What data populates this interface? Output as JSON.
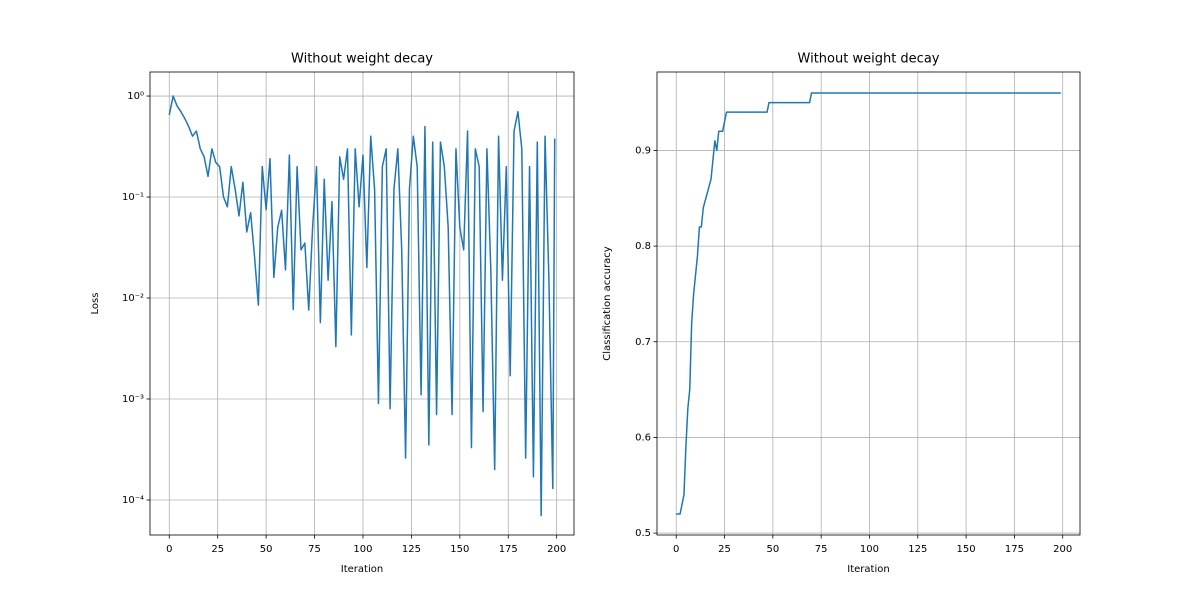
{
  "chart_data": [
    {
      "type": "line",
      "title": "Without weight decay",
      "x_label": "Iteration",
      "y_label": "Loss",
      "yscale": "log",
      "grid": true,
      "x": [
        0,
        2,
        4,
        6,
        8,
        10,
        12,
        14,
        16,
        18,
        20,
        22,
        24,
        26,
        28,
        30,
        32,
        34,
        36,
        38,
        40,
        42,
        44,
        46,
        48,
        50,
        52,
        54,
        56,
        58,
        60,
        62,
        64,
        66,
        68,
        70,
        72,
        74,
        76,
        78,
        80,
        82,
        84,
        86,
        88,
        90,
        92,
        94,
        96,
        98,
        100,
        102,
        104,
        106,
        108,
        110,
        112,
        114,
        116,
        118,
        120,
        122,
        124,
        126,
        128,
        130,
        132,
        134,
        136,
        138,
        140,
        142,
        144,
        146,
        148,
        150,
        152,
        154,
        156,
        158,
        160,
        162,
        164,
        166,
        168,
        170,
        172,
        174,
        176,
        178,
        180,
        182,
        184,
        186,
        188,
        190,
        192,
        194,
        196,
        198,
        199
      ],
      "series": [
        {
          "color": "#1f77b4",
          "values": [
            0.65,
            1.0,
            0.8,
            0.7,
            0.6,
            0.5,
            0.4,
            0.45,
            0.3,
            0.25,
            0.16,
            0.3,
            0.22,
            0.2,
            0.1,
            0.08,
            0.2,
            0.12,
            0.065,
            0.14,
            0.045,
            0.07,
            0.026,
            0.0085,
            0.2,
            0.075,
            0.24,
            0.016,
            0.05,
            0.074,
            0.019,
            0.26,
            0.0077,
            0.2,
            0.03,
            0.035,
            0.0076,
            0.05,
            0.2,
            0.0057,
            0.15,
            0.015,
            0.09,
            0.0033,
            0.25,
            0.15,
            0.3,
            0.0043,
            0.3,
            0.08,
            0.26,
            0.02,
            0.4,
            0.12,
            0.0009,
            0.2,
            0.3,
            0.0008,
            0.12,
            0.3,
            0.03,
            0.00026,
            0.12,
            0.4,
            0.2,
            0.0011,
            0.5,
            0.00035,
            0.35,
            0.0007,
            0.35,
            0.2,
            0.05,
            0.0007,
            0.3,
            0.05,
            0.03,
            0.45,
            0.00033,
            0.3,
            0.2,
            0.00075,
            0.3,
            0.019,
            0.0002,
            0.4,
            0.015,
            0.2,
            0.0017,
            0.45,
            0.7,
            0.3,
            0.00026,
            0.2,
            0.00017,
            0.35,
            7e-05,
            0.4,
            0.015,
            0.00013,
            0.38
          ]
        }
      ],
      "xlim": [
        -9.95,
        208.95
      ],
      "xticks": [
        0,
        25,
        50,
        75,
        100,
        125,
        150,
        175,
        200
      ],
      "ylim": [
        4.5e-05,
        1.73
      ],
      "yticks": [
        {
          "value": 0.0001,
          "label": "10⁻⁴"
        },
        {
          "value": 0.001,
          "label": "10⁻³"
        },
        {
          "value": 0.01,
          "label": "10⁻²"
        },
        {
          "value": 0.1,
          "label": "10⁻¹"
        },
        {
          "value": 1,
          "label": "10⁰"
        }
      ]
    },
    {
      "type": "line",
      "title": "Without weight decay",
      "x_label": "Iteration",
      "y_label": "Classification accuracy",
      "yscale": "linear",
      "grid": true,
      "x": [
        0,
        2,
        3,
        4,
        5,
        6,
        7,
        8,
        9,
        10,
        11,
        12,
        13,
        14,
        16,
        18,
        19,
        20,
        21,
        22,
        24,
        25,
        26,
        47,
        48,
        69,
        70,
        199
      ],
      "series": [
        {
          "color": "#1f77b4",
          "values": [
            0.52,
            0.52,
            0.53,
            0.54,
            0.59,
            0.63,
            0.65,
            0.72,
            0.75,
            0.77,
            0.79,
            0.82,
            0.82,
            0.84,
            0.855,
            0.87,
            0.89,
            0.91,
            0.9,
            0.92,
            0.92,
            0.93,
            0.94,
            0.94,
            0.95,
            0.95,
            0.96,
            0.96
          ]
        }
      ],
      "xlim": [
        -9.95,
        208.95
      ],
      "xticks": [
        0,
        25,
        50,
        75,
        100,
        125,
        150,
        175,
        200
      ],
      "ylim": [
        0.498,
        0.982
      ],
      "yticks": [
        0.5,
        0.6,
        0.7,
        0.8,
        0.9
      ]
    }
  ]
}
